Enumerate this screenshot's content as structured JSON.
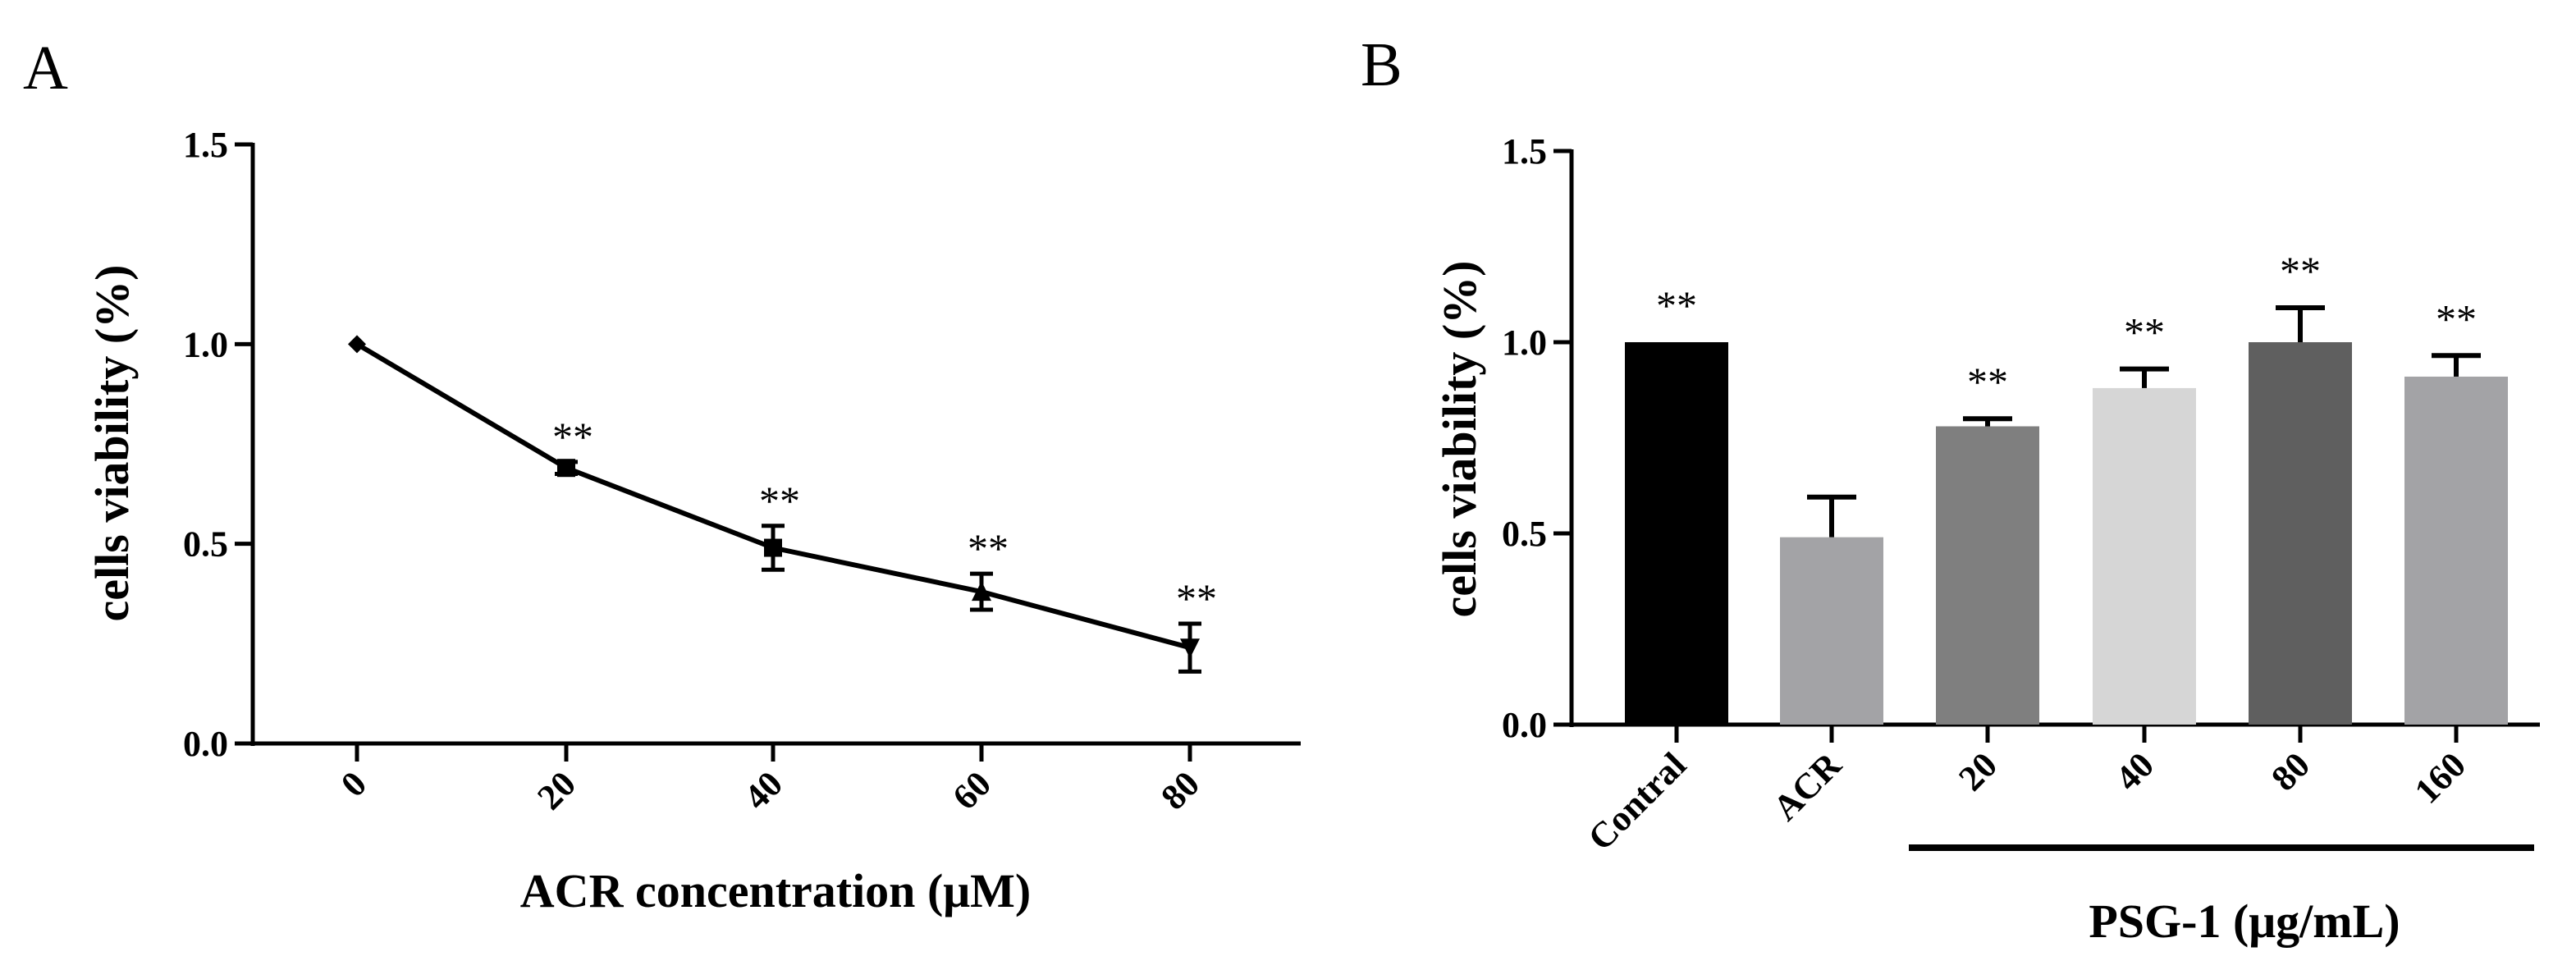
{
  "chart_data": [
    {
      "panel_label": "A",
      "type": "line",
      "xlabel": "ACR concentration (μM)",
      "ylabel": "cells viability (%)",
      "ylim": [
        0,
        1.5
      ],
      "yticks": [
        0.0,
        0.5,
        1.0,
        1.5
      ],
      "ytick_labels": [
        "0.0",
        "0.5",
        "1.0",
        "1.5"
      ],
      "categories": [
        "0",
        "20",
        "40",
        "60",
        "80"
      ],
      "series": [
        {
          "name": "cells viability",
          "values": [
            1.0,
            0.69,
            0.49,
            0.38,
            0.24
          ],
          "error": [
            0.0,
            0.015,
            0.055,
            0.045,
            0.06
          ],
          "markers": [
            "diamond",
            "square",
            "square",
            "triangle-up",
            "triangle-down"
          ]
        }
      ],
      "annotations": [
        "",
        "**",
        "**",
        "**",
        "**"
      ]
    },
    {
      "panel_label": "B",
      "type": "bar",
      "xlabel": "PSG-1 (μg/mL)",
      "ylabel": "cells viability (%)",
      "ylim": [
        0,
        1.5
      ],
      "yticks": [
        0.0,
        0.5,
        1.0,
        1.5
      ],
      "ytick_labels": [
        "0.0",
        "0.5",
        "1.0",
        "1.5"
      ],
      "categories": [
        "Contral",
        "ACR",
        "20",
        "40",
        "80",
        "160"
      ],
      "values": [
        1.0,
        0.49,
        0.78,
        0.88,
        1.0,
        0.91
      ],
      "error": [
        0.0,
        0.105,
        0.02,
        0.05,
        0.09,
        0.055
      ],
      "colors": [
        "#000000",
        "#a3a3a6",
        "#7f7f7f",
        "#d6d6d6",
        "#5f5f5f",
        "#a3a3a6"
      ],
      "annotations": [
        "**",
        "",
        "**",
        "**",
        "**",
        "**"
      ],
      "group_bracket": {
        "label": "PSG-1 (μg/mL)",
        "from": "20",
        "to": "160"
      }
    }
  ]
}
